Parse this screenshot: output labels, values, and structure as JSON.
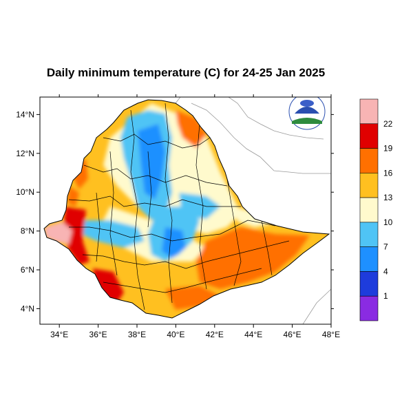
{
  "title": "Daily minimum temperature (C) for 24-25 Jan 2025",
  "map": {
    "lon_range": [
      33.0,
      48.0
    ],
    "lat_range": [
      3.2,
      14.9
    ],
    "x_ticks": [
      "34°E",
      "36°E",
      "38°E",
      "40°E",
      "42°E",
      "44°E",
      "46°E",
      "48°E"
    ],
    "x_tick_values": [
      34,
      36,
      38,
      40,
      42,
      44,
      46,
      48
    ],
    "y_ticks": [
      "4°N",
      "6°N",
      "8°N",
      "10°N",
      "12°N",
      "14°N"
    ],
    "y_tick_values": [
      4,
      6,
      8,
      10,
      12,
      14
    ],
    "region": "Ethiopia"
  },
  "colorbar": {
    "levels": [
      "1",
      "4",
      "7",
      "10",
      "13",
      "16",
      "19",
      "22"
    ],
    "colors": [
      "#8a2be2",
      "#1e3cdc",
      "#1e90ff",
      "#4fc4f5",
      "#fffacd",
      "#ffc020",
      "#ff7000",
      "#e00000",
      "#f8b4b4"
    ]
  },
  "logo": {
    "name": "agency-logo",
    "colors": [
      "#2a4fb0",
      "#2e8b3e",
      "#ffffff"
    ]
  }
}
